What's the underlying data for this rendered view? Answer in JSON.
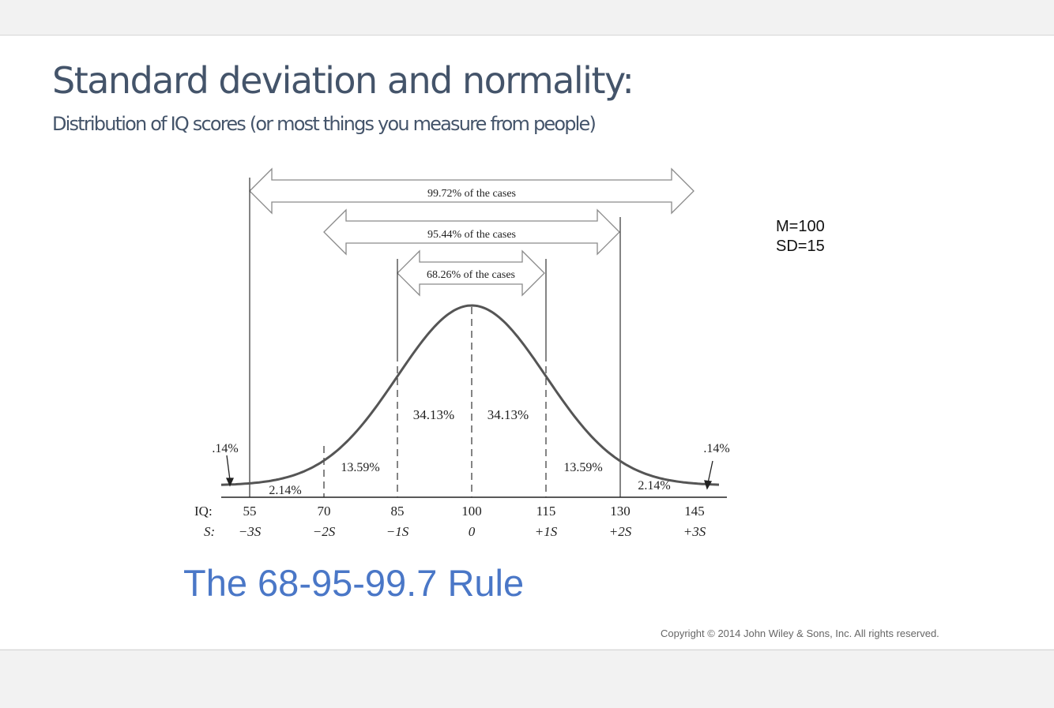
{
  "slide": {
    "title": "Standard deviation and normality:",
    "subtitle": "Distribution of IQ scores (or most things you measure from people)",
    "stats": {
      "mean": "M=100",
      "sd": "SD=15"
    },
    "rule": "The 68-95-99.7 Rule",
    "copyright": "Copyright © 2014 John Wiley & Sons, Inc. All rights reserved."
  },
  "diagram": {
    "arrows": [
      "99.72% of the cases",
      "95.44% of the cases",
      "68.26% of the cases"
    ],
    "regions": {
      "left_center": "34.13%",
      "right_center": "34.13%",
      "left_mid": "13.59%",
      "right_mid": "13.59%",
      "left_outer": "2.14%",
      "right_outer": "2.14%",
      "left_tail": ".14%",
      "right_tail": ".14%"
    },
    "iq_label": "IQ:",
    "s_label": "S:",
    "iq_ticks": [
      "55",
      "70",
      "85",
      "100",
      "115",
      "130",
      "145"
    ],
    "s_ticks": [
      "−3S",
      "−2S",
      "−1S",
      "0",
      "+1S",
      "+2S",
      "+3S"
    ]
  }
}
